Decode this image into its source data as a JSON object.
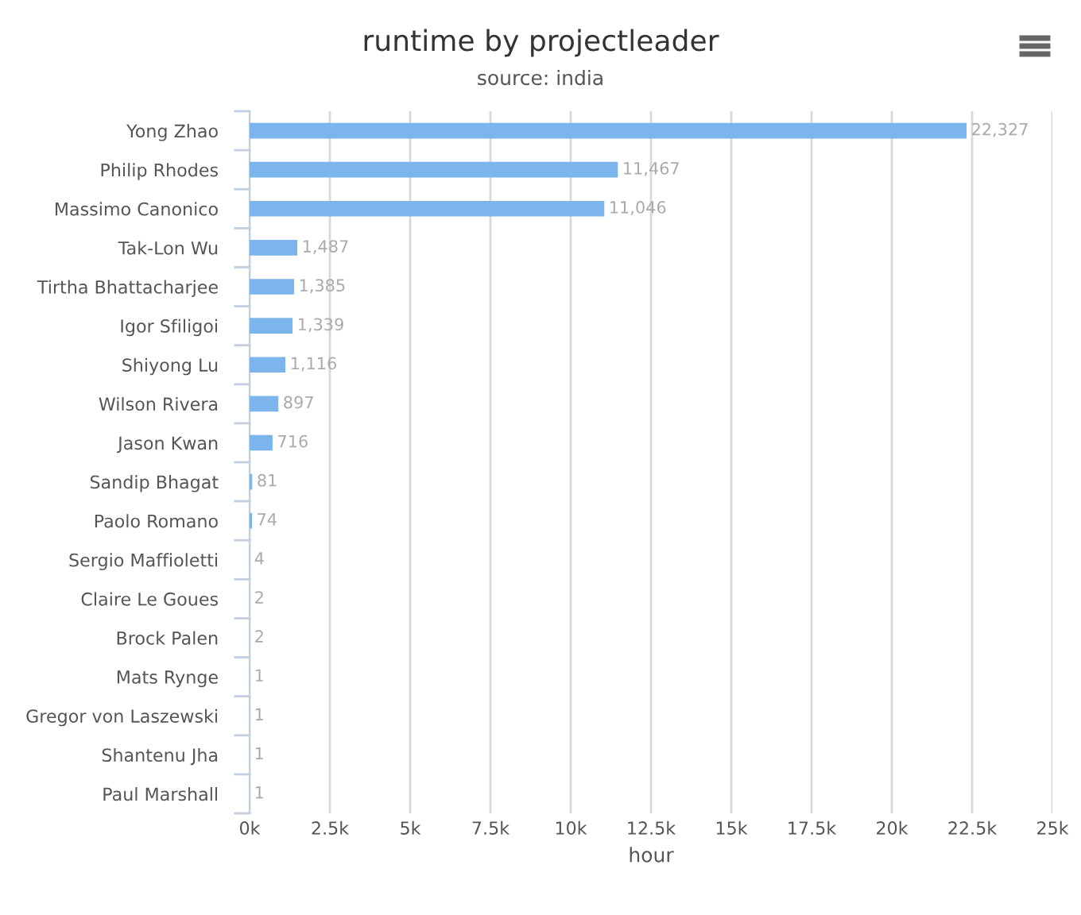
{
  "chart_data": {
    "type": "bar",
    "orientation": "horizontal",
    "title": "runtime by projectleader",
    "subtitle": "source: india",
    "xlabel": "hour",
    "categories": [
      "Yong Zhao",
      "Philip Rhodes",
      "Massimo Canonico",
      "Tak-Lon Wu",
      "Tirtha Bhattacharjee",
      "Igor Sfiligoi",
      "Shiyong Lu",
      "Wilson Rivera",
      "Jason Kwan",
      "Sandip Bhagat",
      "Paolo Romano",
      "Sergio Maffioletti",
      "Claire Le Goues",
      "Brock Palen",
      "Mats Rynge",
      "Gregor von Laszewski",
      "Shantenu Jha",
      "Paul Marshall"
    ],
    "values": [
      22327,
      11467,
      11046,
      1487,
      1385,
      1339,
      1116,
      897,
      716,
      81,
      74,
      4,
      2,
      2,
      1,
      1,
      1,
      1
    ],
    "value_labels": [
      "22,327",
      "11,467",
      "11,046",
      "1,487",
      "1,385",
      "1,339",
      "1,116",
      "897",
      "716",
      "81",
      "74",
      "4",
      "2",
      "2",
      "1",
      "1",
      "1",
      "1"
    ],
    "color": "#7cb5ec",
    "xlim": [
      0,
      25000
    ],
    "xticks": [
      {
        "value": 0,
        "label": "0k"
      },
      {
        "value": 2500,
        "label": "2.5k"
      },
      {
        "value": 5000,
        "label": "5k"
      },
      {
        "value": 7500,
        "label": "7.5k"
      },
      {
        "value": 10000,
        "label": "10k"
      },
      {
        "value": 12500,
        "label": "12.5k"
      },
      {
        "value": 15000,
        "label": "15k"
      },
      {
        "value": 17500,
        "label": "17.5k"
      },
      {
        "value": 20000,
        "label": "20k"
      },
      {
        "value": 22500,
        "label": "22.5k"
      },
      {
        "value": 25000,
        "label": "25k"
      }
    ],
    "grid": "x",
    "legend": false
  }
}
